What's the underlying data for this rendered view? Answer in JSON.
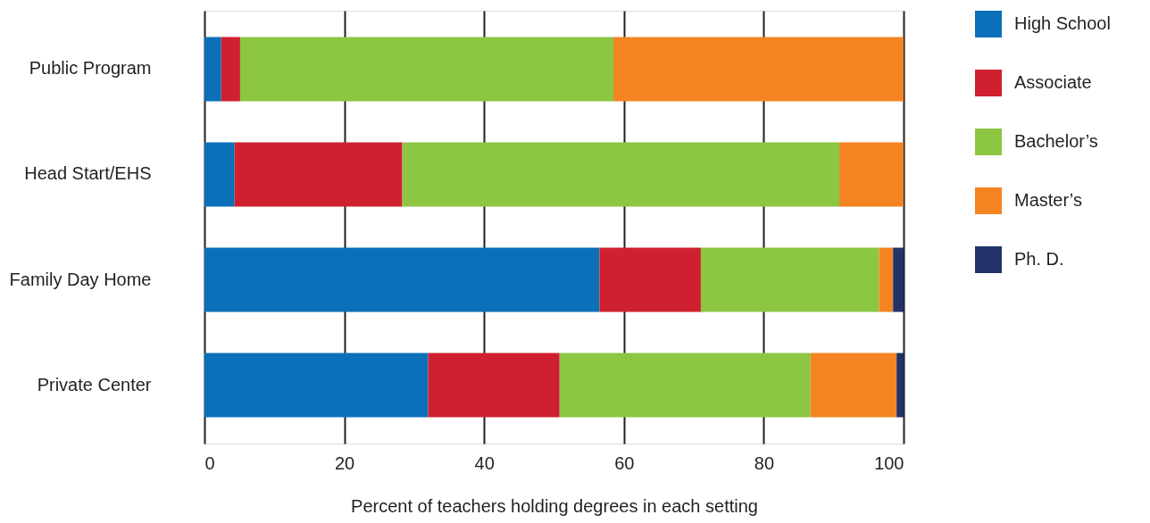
{
  "chart_data": {
    "type": "bar",
    "orientation": "horizontal",
    "stacked": true,
    "xlabel": "Percent of teachers holding degrees in each setting",
    "categories": [
      "Public Program",
      "Head Start/EHS",
      "Family Day Home",
      "Private Center"
    ],
    "series": [
      {
        "name": "High School",
        "color": "#0b70b9",
        "values": [
          2.4,
          4.3,
          56.5,
          32.0
        ]
      },
      {
        "name": "Associate",
        "color": "#cf202f",
        "values": [
          2.7,
          24.0,
          14.5,
          18.8
        ]
      },
      {
        "name": "Bachelor’s",
        "color": "#8cc642",
        "values": [
          53.4,
          62.5,
          25.5,
          35.9
        ]
      },
      {
        "name": "Master’s",
        "color": "#f48422",
        "values": [
          41.5,
          9.2,
          2.0,
          12.3
        ]
      },
      {
        "name": "Ph. D.",
        "color": "#213368",
        "values": [
          0,
          0,
          1.5,
          1.0
        ]
      }
    ],
    "xlim": [
      0,
      100
    ],
    "xticks": [
      0,
      20,
      40,
      60,
      80,
      100
    ],
    "grid": "x",
    "legend": "right"
  }
}
